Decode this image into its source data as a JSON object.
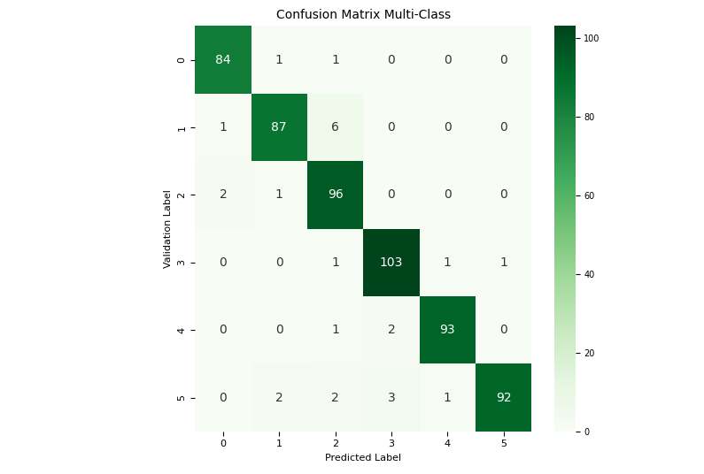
{
  "chart_data": {
    "type": "heatmap",
    "title": "Confusion Matrix Multi-Class",
    "x_label": "Predicted Label",
    "y_label": "Validation Label",
    "x_categories": [
      "0",
      "1",
      "2",
      "3",
      "4",
      "5"
    ],
    "y_categories": [
      "0",
      "1",
      "2",
      "3",
      "4",
      "5"
    ],
    "cells": [
      [
        84,
        1,
        1,
        0,
        0,
        0
      ],
      [
        1,
        87,
        6,
        0,
        0,
        0
      ],
      [
        2,
        1,
        96,
        0,
        0,
        0
      ],
      [
        0,
        0,
        1,
        103,
        1,
        1
      ],
      [
        0,
        0,
        1,
        2,
        93,
        0
      ],
      [
        0,
        2,
        2,
        3,
        1,
        92
      ]
    ],
    "colorbar_lim": [
      0,
      103
    ],
    "colorbar_ticks": [
      0,
      20,
      40,
      60,
      80,
      100
    ],
    "data_labels": true
  }
}
